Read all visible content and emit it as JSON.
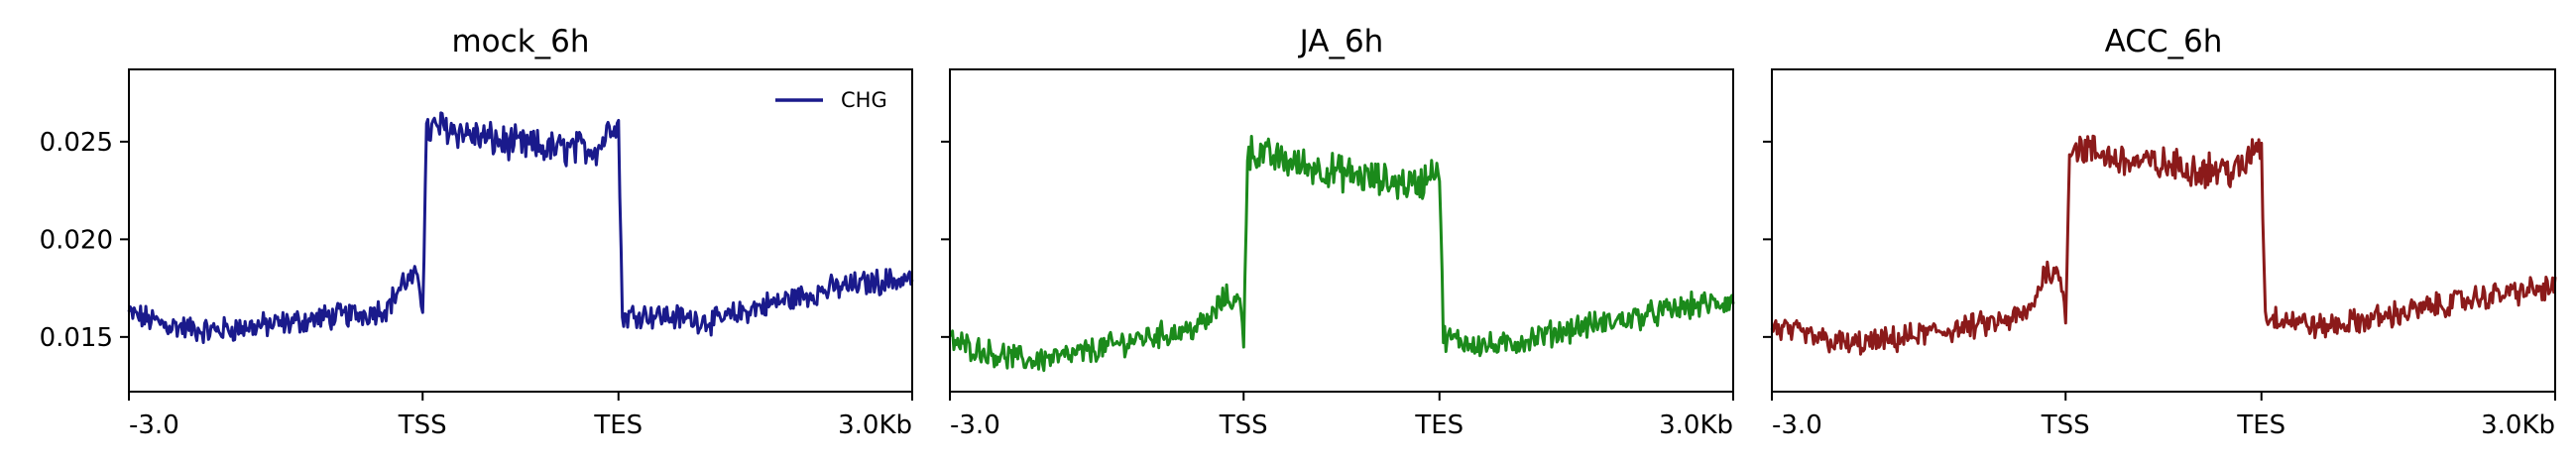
{
  "chart_data": [
    {
      "type": "line",
      "title": "mock_6h",
      "color": "#1a1a8c",
      "x_ticks": [
        "-3.0",
        "TSS",
        "TES",
        "3.0Kb"
      ],
      "y_ticks": [
        "0.015",
        "0.020",
        "0.025"
      ],
      "ylim": [
        0.0122,
        0.0287
      ],
      "legend": {
        "label": "CHG",
        "position": "top-right"
      },
      "series": [
        {
          "x": [
            0,
            0.05,
            0.1,
            0.15,
            0.2,
            0.25,
            0.3,
            0.33,
            0.35,
            0.37,
            0.375,
            0.38,
            0.4,
            0.45,
            0.5,
            0.55,
            0.6,
            0.62,
            0.625,
            0.63,
            0.65,
            0.7,
            0.75,
            0.8,
            0.85,
            0.9,
            0.95,
            1.0
          ],
          "y": [
            0.0162,
            0.0156,
            0.0153,
            0.0155,
            0.0157,
            0.016,
            0.0162,
            0.0165,
            0.0178,
            0.018,
            0.0165,
            0.0255,
            0.0258,
            0.0252,
            0.0248,
            0.0246,
            0.0247,
            0.0262,
            0.0258,
            0.016,
            0.0162,
            0.016,
            0.0158,
            0.0165,
            0.017,
            0.0175,
            0.0178,
            0.018
          ]
        }
      ]
    },
    {
      "type": "line",
      "title": "JA_6h",
      "color": "#1b8a1b",
      "x_ticks": [
        "-3.0",
        "TSS",
        "TES",
        "3.0Kb"
      ],
      "y_ticks": [
        "",
        "",
        ""
      ],
      "ylim": [
        0.0122,
        0.0287
      ],
      "series": [
        {
          "x": [
            0,
            0.05,
            0.1,
            0.15,
            0.2,
            0.25,
            0.3,
            0.33,
            0.35,
            0.37,
            0.375,
            0.38,
            0.4,
            0.45,
            0.5,
            0.55,
            0.6,
            0.62,
            0.625,
            0.63,
            0.65,
            0.7,
            0.75,
            0.8,
            0.85,
            0.9,
            0.95,
            1.0
          ],
          "y": [
            0.0148,
            0.0142,
            0.0138,
            0.014,
            0.0145,
            0.015,
            0.0153,
            0.0158,
            0.017,
            0.0168,
            0.015,
            0.0245,
            0.0243,
            0.0238,
            0.0234,
            0.023,
            0.0228,
            0.0238,
            0.0235,
            0.015,
            0.0148,
            0.0145,
            0.015,
            0.0155,
            0.0158,
            0.0162,
            0.0166,
            0.0168
          ]
        }
      ]
    },
    {
      "type": "line",
      "title": "ACC_6h",
      "color": "#8b1a1a",
      "x_ticks": [
        "-3.0",
        "TSS",
        "TES",
        "3.0Kb"
      ],
      "y_ticks": [
        "",
        "",
        ""
      ],
      "ylim": [
        0.0122,
        0.0287
      ],
      "series": [
        {
          "x": [
            0,
            0.05,
            0.1,
            0.15,
            0.2,
            0.25,
            0.3,
            0.33,
            0.35,
            0.37,
            0.375,
            0.38,
            0.4,
            0.45,
            0.5,
            0.55,
            0.6,
            0.62,
            0.625,
            0.63,
            0.65,
            0.7,
            0.75,
            0.8,
            0.85,
            0.9,
            0.95,
            1.0
          ],
          "y": [
            0.0155,
            0.015,
            0.0146,
            0.0148,
            0.0152,
            0.0155,
            0.0158,
            0.0163,
            0.0185,
            0.018,
            0.0158,
            0.0248,
            0.0246,
            0.024,
            0.0238,
            0.0236,
            0.0235,
            0.025,
            0.0246,
            0.016,
            0.016,
            0.0155,
            0.0158,
            0.0162,
            0.0166,
            0.017,
            0.0173,
            0.0175
          ]
        }
      ]
    }
  ]
}
